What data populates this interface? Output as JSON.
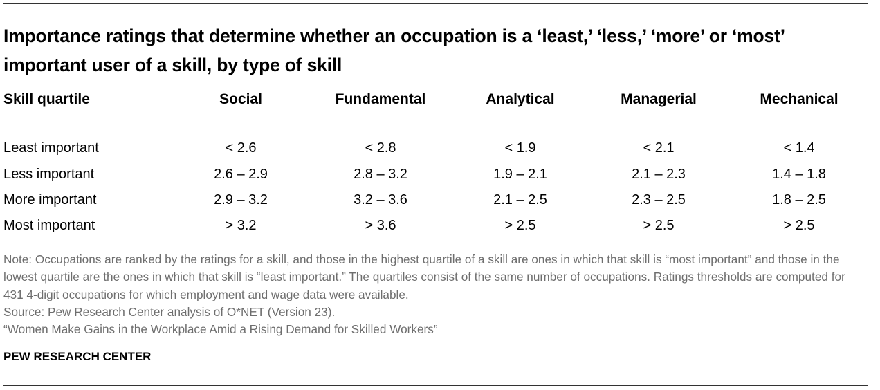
{
  "header": {
    "title": "Importance ratings that determine whether an occupation is a ‘least,’ ‘less,’ ‘more’ or ‘most’ important user of a skill, by type of skill"
  },
  "table": {
    "columns": [
      "Skill quartile",
      "Social",
      "Fundamental",
      "Analytical",
      "Managerial",
      "Mechanical"
    ],
    "rows": [
      [
        "Least important",
        "< 2.6",
        "< 2.8",
        "< 1.9",
        "< 2.1",
        "< 1.4"
      ],
      [
        "Less important",
        "2.6 – 2.9",
        "2.8 – 3.2",
        "1.9 – 2.1",
        "2.1 – 2.3",
        "1.4 – 1.8"
      ],
      [
        "More important",
        "2.9 – 3.2",
        "3.2 – 3.6",
        "2.1 – 2.5",
        "2.3 – 2.5",
        "1.8 – 2.5"
      ],
      [
        "Most important",
        "> 3.2",
        "> 3.6",
        "> 2.5",
        "> 2.5",
        "> 2.5"
      ]
    ]
  },
  "footer": {
    "note": "Note: Occupations are ranked by the ratings for a skill, and those in the highest quartile of a skill are ones in which that skill is “most important” and those in the lowest quartile are the ones in which that skill is “least important.” The quartiles consist of the same number of occupations. Ratings thresholds are computed for 431 4-digit occupations for which employment and wage data were available.",
    "source": "Source: Pew Research Center analysis of O*NET (Version 23).",
    "report": "“Women Make Gains in the Workplace Amid a Rising Demand for Skilled Workers”",
    "credit": "PEW RESEARCH CENTER"
  }
}
